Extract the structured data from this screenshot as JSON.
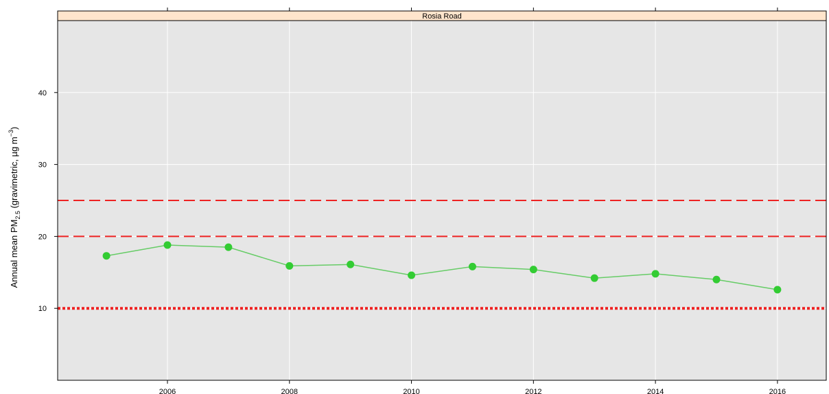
{
  "chart_data": {
    "type": "line",
    "panel_title": "Rosia Road",
    "ylabel": {
      "main": "Annual mean PM",
      "subscript": "2.5",
      "middle": " (gravimetric, µg m",
      "superscript": "−3",
      "end": ")"
    },
    "xlabel": "",
    "xlim": [
      2004.2,
      2016.8
    ],
    "ylim": [
      0,
      50
    ],
    "x_ticks": [
      2006,
      2008,
      2010,
      2012,
      2014,
      2016
    ],
    "y_ticks": [
      10,
      20,
      30,
      40
    ],
    "x_tick_labels": [
      "2006",
      "2008",
      "2010",
      "2012",
      "2014",
      "2016"
    ],
    "y_tick_labels": [
      "10",
      "20",
      "30",
      "40"
    ],
    "grid": true,
    "series": [
      {
        "x": [
          2005,
          2006,
          2007,
          2008,
          2009,
          2010,
          2011,
          2012,
          2013,
          2014,
          2015,
          2016
        ],
        "y": [
          17.3,
          18.8,
          18.5,
          15.9,
          16.1,
          14.6,
          15.8,
          15.4,
          14.2,
          14.8,
          14.0,
          12.6
        ]
      }
    ],
    "reference_lines": [
      {
        "y": 25,
        "style": "dashed"
      },
      {
        "y": 20,
        "style": "dashed"
      },
      {
        "y": 10,
        "style": "dotted"
      }
    ],
    "colors": {
      "series": "#33cc33",
      "series_line": "#66cc66",
      "reference": "#ee2222",
      "panel_background": "#e6e6e6",
      "grid": "#ffffff",
      "strip": "#ffe5cc"
    }
  }
}
